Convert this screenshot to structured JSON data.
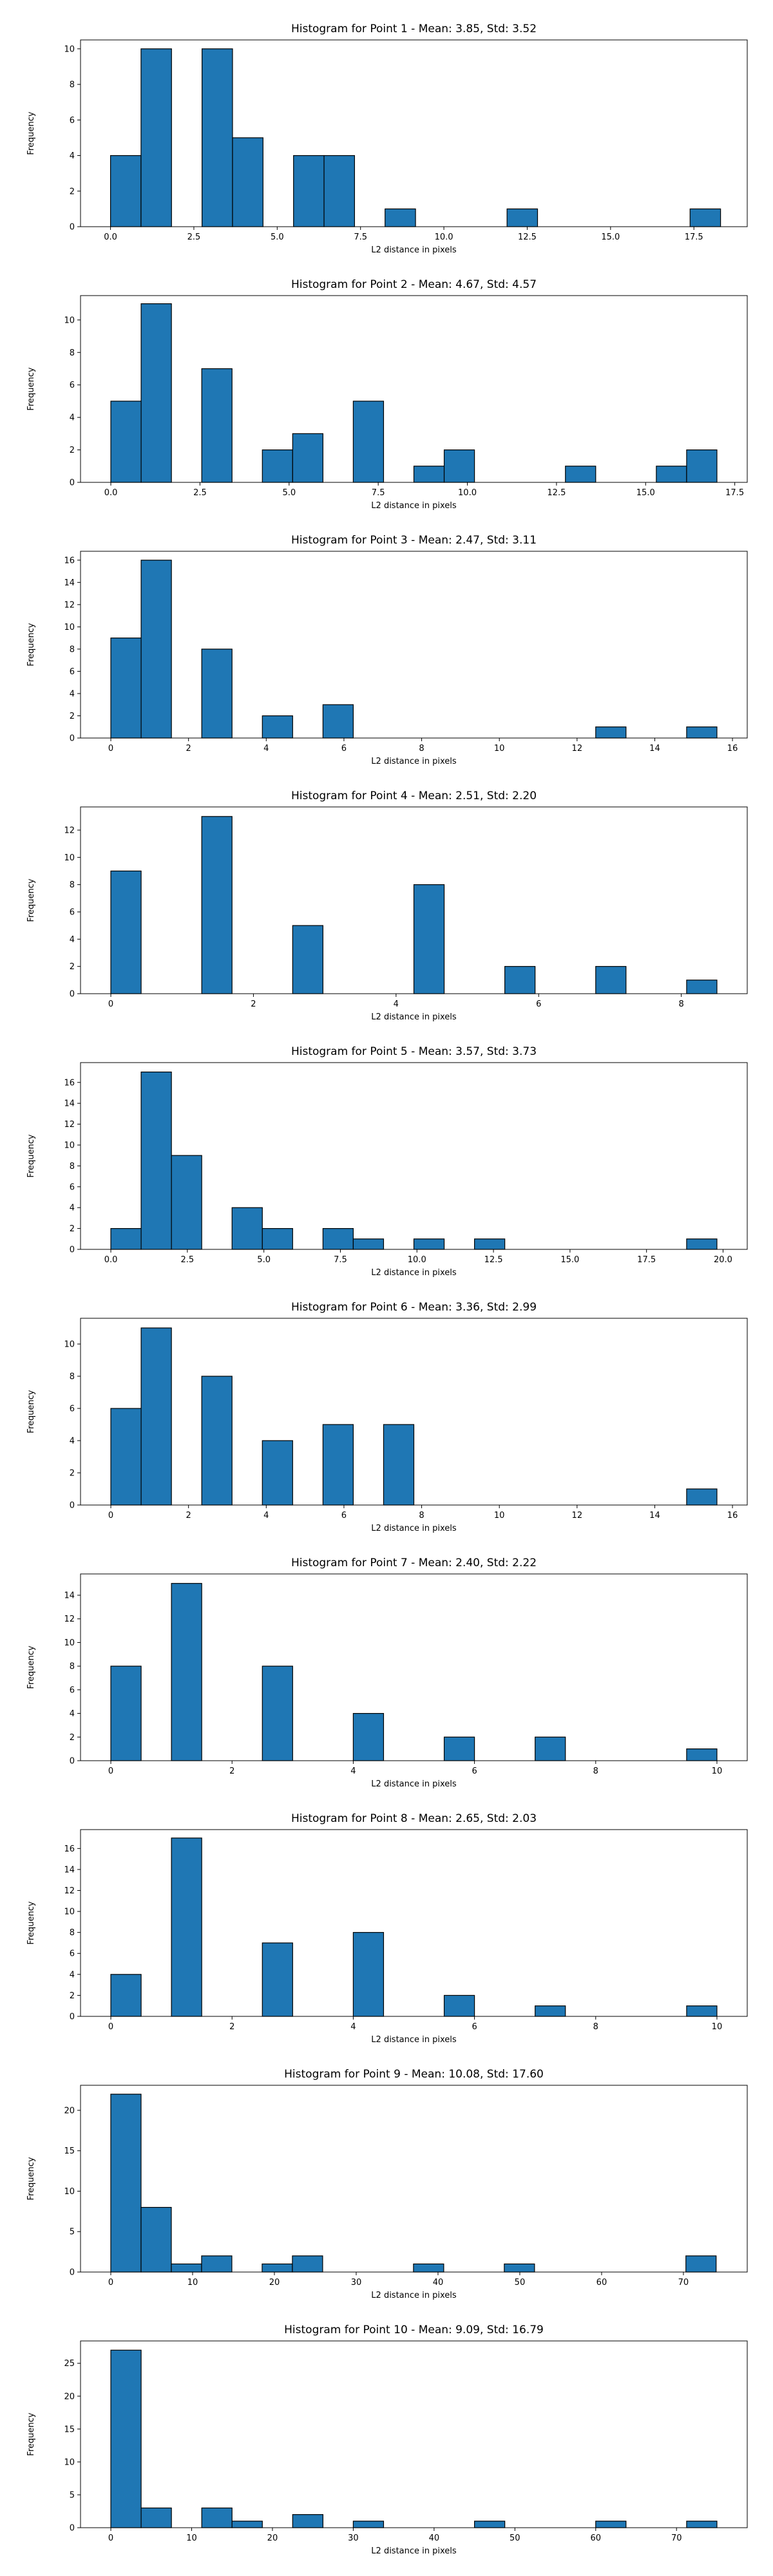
{
  "chart_data": [
    {
      "type": "bar",
      "title": "Histogram for Point 1 - Mean: 3.85, Std: 3.52",
      "xlabel": "L2 distance in pixels",
      "ylabel": "Frequency",
      "xlim": [
        -0.9,
        19.1
      ],
      "ylim": [
        0,
        10.5
      ],
      "xticks": [
        0.0,
        2.5,
        5.0,
        7.5,
        10.0,
        12.5,
        15.0,
        17.5
      ],
      "xtick_labels": [
        "0.0",
        "2.5",
        "5.0",
        "7.5",
        "10.0",
        "12.5",
        "15.0",
        "17.5"
      ],
      "yticks": [
        0,
        2,
        4,
        6,
        8,
        10
      ],
      "ytick_labels": [
        "0",
        "2",
        "4",
        "6",
        "8",
        "10"
      ],
      "bins": [
        [
          0.0,
          0.915
        ],
        [
          0.915,
          1.83
        ],
        [
          2.745,
          3.66
        ],
        [
          3.66,
          4.575
        ],
        [
          5.49,
          6.405
        ],
        [
          6.405,
          7.32
        ],
        [
          8.235,
          9.15
        ],
        [
          11.895,
          12.81
        ],
        [
          17.385,
          18.3
        ]
      ],
      "values": [
        4,
        10,
        10,
        5,
        4,
        4,
        1,
        1,
        1
      ],
      "bar_color": "#1f77b4",
      "grid": false
    },
    {
      "type": "bar",
      "title": "Histogram for Point 2 - Mean: 4.67, Std: 4.57",
      "xlabel": "L2 distance in pixels",
      "ylabel": "Frequency",
      "xlim": [
        -0.85,
        17.85
      ],
      "ylim": [
        0,
        11.5
      ],
      "xticks": [
        0.0,
        2.5,
        5.0,
        7.5,
        10.0,
        12.5,
        15.0,
        17.5
      ],
      "xtick_labels": [
        "0.0",
        "2.5",
        "5.0",
        "7.5",
        "10.0",
        "12.5",
        "15.0",
        "17.5"
      ],
      "yticks": [
        0,
        2,
        4,
        6,
        8,
        10
      ],
      "ytick_labels": [
        "0",
        "2",
        "4",
        "6",
        "8",
        "10"
      ],
      "bins": [
        [
          0.0,
          0.85
        ],
        [
          0.85,
          1.7
        ],
        [
          2.55,
          3.4
        ],
        [
          4.25,
          5.1
        ],
        [
          5.1,
          5.95
        ],
        [
          6.8,
          7.65
        ],
        [
          8.5,
          9.35
        ],
        [
          9.35,
          10.2
        ],
        [
          12.75,
          13.6
        ],
        [
          15.3,
          16.15
        ],
        [
          16.15,
          17.0
        ]
      ],
      "values": [
        5,
        11,
        7,
        2,
        3,
        5,
        1,
        2,
        1,
        1,
        2
      ],
      "bar_color": "#1f77b4",
      "grid": false
    },
    {
      "type": "bar",
      "title": "Histogram for Point 3 - Mean: 2.47, Std: 3.11",
      "xlabel": "L2 distance in pixels",
      "ylabel": "Frequency",
      "xlim": [
        -0.78,
        16.38
      ],
      "ylim": [
        0,
        16.8
      ],
      "xticks": [
        0,
        2,
        4,
        6,
        8,
        10,
        12,
        14,
        16
      ],
      "xtick_labels": [
        "0",
        "2",
        "4",
        "6",
        "8",
        "10",
        "12",
        "14",
        "16"
      ],
      "yticks": [
        0,
        2,
        4,
        6,
        8,
        10,
        12,
        14,
        16
      ],
      "ytick_labels": [
        "0",
        "2",
        "4",
        "6",
        "8",
        "10",
        "12",
        "14",
        "16"
      ],
      "bins": [
        [
          0.0,
          0.78
        ],
        [
          0.78,
          1.56
        ],
        [
          2.34,
          3.12
        ],
        [
          3.9,
          4.68
        ],
        [
          5.46,
          6.24
        ],
        [
          12.48,
          13.26
        ],
        [
          14.82,
          15.6
        ]
      ],
      "values": [
        9,
        16,
        8,
        2,
        3,
        1,
        1
      ],
      "bar_color": "#1f77b4",
      "grid": false
    },
    {
      "type": "bar",
      "title": "Histogram for Point 4 - Mean: 2.51, Std: 2.20",
      "xlabel": "L2 distance in pixels",
      "ylabel": "Frequency",
      "xlim": [
        -0.425,
        8.925
      ],
      "ylim": [
        0,
        13.7
      ],
      "xticks": [
        0,
        2,
        4,
        6,
        8
      ],
      "xtick_labels": [
        "0",
        "2",
        "4",
        "6",
        "8"
      ],
      "yticks": [
        0,
        2,
        4,
        6,
        8,
        10,
        12
      ],
      "ytick_labels": [
        "0",
        "2",
        "4",
        "6",
        "8",
        "10",
        "12"
      ],
      "bins": [
        [
          0.0,
          0.425
        ],
        [
          1.275,
          1.7
        ],
        [
          2.55,
          2.975
        ],
        [
          4.25,
          4.675
        ],
        [
          5.525,
          5.95
        ],
        [
          6.8,
          7.225
        ],
        [
          8.075,
          8.5
        ]
      ],
      "values": [
        9,
        13,
        5,
        8,
        2,
        2,
        1
      ],
      "bar_color": "#1f77b4",
      "grid": false
    },
    {
      "type": "bar",
      "title": "Histogram for Point 5 - Mean: 3.57, Std: 3.73",
      "xlabel": "L2 distance in pixels",
      "ylabel": "Frequency",
      "xlim": [
        -0.99,
        20.79
      ],
      "ylim": [
        0,
        17.9
      ],
      "xticks": [
        0.0,
        2.5,
        5.0,
        7.5,
        10.0,
        12.5,
        15.0,
        17.5,
        20.0
      ],
      "xtick_labels": [
        "0.0",
        "2.5",
        "5.0",
        "7.5",
        "10.0",
        "12.5",
        "15.0",
        "17.5",
        "20.0"
      ],
      "yticks": [
        0,
        2,
        4,
        6,
        8,
        10,
        12,
        14,
        16
      ],
      "ytick_labels": [
        "0",
        "2",
        "4",
        "6",
        "8",
        "10",
        "12",
        "14",
        "16"
      ],
      "bins": [
        [
          0.0,
          0.99
        ],
        [
          0.99,
          1.98
        ],
        [
          1.98,
          2.97
        ],
        [
          3.96,
          4.95
        ],
        [
          4.95,
          5.94
        ],
        [
          6.93,
          7.92
        ],
        [
          7.92,
          8.91
        ],
        [
          9.9,
          10.89
        ],
        [
          11.88,
          12.87
        ],
        [
          18.81,
          19.8
        ]
      ],
      "values": [
        2,
        17,
        9,
        4,
        2,
        2,
        1,
        1,
        1,
        1
      ],
      "bar_color": "#1f77b4",
      "grid": false
    },
    {
      "type": "bar",
      "title": "Histogram for Point 6 - Mean: 3.36, Std: 2.99",
      "xlabel": "L2 distance in pixels",
      "ylabel": "Frequency",
      "xlim": [
        -0.78,
        16.38
      ],
      "ylim": [
        0,
        11.6
      ],
      "xticks": [
        0,
        2,
        4,
        6,
        8,
        10,
        12,
        14,
        16
      ],
      "xtick_labels": [
        "0",
        "2",
        "4",
        "6",
        "8",
        "10",
        "12",
        "14",
        "16"
      ],
      "yticks": [
        0,
        2,
        4,
        6,
        8,
        10
      ],
      "ytick_labels": [
        "0",
        "2",
        "4",
        "6",
        "8",
        "10"
      ],
      "bins": [
        [
          0.0,
          0.78
        ],
        [
          0.78,
          1.56
        ],
        [
          2.34,
          3.12
        ],
        [
          3.9,
          4.68
        ],
        [
          5.46,
          6.24
        ],
        [
          7.02,
          7.8
        ],
        [
          14.82,
          15.6
        ]
      ],
      "values": [
        6,
        11,
        8,
        4,
        5,
        5,
        1
      ],
      "bar_color": "#1f77b4",
      "grid": false
    },
    {
      "type": "bar",
      "title": "Histogram for Point 7 - Mean: 2.40, Std: 2.22",
      "xlabel": "L2 distance in pixels",
      "ylabel": "Frequency",
      "xlim": [
        -0.5,
        10.5
      ],
      "ylim": [
        0,
        15.8
      ],
      "xticks": [
        0,
        2,
        4,
        6,
        8,
        10
      ],
      "xtick_labels": [
        "0",
        "2",
        "4",
        "6",
        "8",
        "10"
      ],
      "yticks": [
        0,
        2,
        4,
        6,
        8,
        10,
        12,
        14
      ],
      "ytick_labels": [
        "0",
        "2",
        "4",
        "6",
        "8",
        "10",
        "12",
        "14"
      ],
      "bins": [
        [
          0.0,
          0.5
        ],
        [
          1.0,
          1.5
        ],
        [
          2.5,
          3.0
        ],
        [
          4.0,
          4.5
        ],
        [
          5.5,
          6.0
        ],
        [
          7.0,
          7.5
        ],
        [
          9.5,
          10.0
        ]
      ],
      "values": [
        8,
        15,
        8,
        4,
        2,
        2,
        1
      ],
      "bar_color": "#1f77b4",
      "grid": false
    },
    {
      "type": "bar",
      "title": "Histogram for Point 8 - Mean: 2.65, Std: 2.03",
      "xlabel": "L2 distance in pixels",
      "ylabel": "Frequency",
      "xlim": [
        -0.5,
        10.5
      ],
      "ylim": [
        0,
        17.8
      ],
      "xticks": [
        0,
        2,
        4,
        6,
        8,
        10
      ],
      "xtick_labels": [
        "0",
        "2",
        "4",
        "6",
        "8",
        "10"
      ],
      "yticks": [
        0,
        2,
        4,
        6,
        8,
        10,
        12,
        14,
        16
      ],
      "ytick_labels": [
        "0",
        "2",
        "4",
        "6",
        "8",
        "10",
        "12",
        "14",
        "16"
      ],
      "bins": [
        [
          0.0,
          0.5
        ],
        [
          1.0,
          1.5
        ],
        [
          2.5,
          3.0
        ],
        [
          4.0,
          4.5
        ],
        [
          5.5,
          6.0
        ],
        [
          7.0,
          7.5
        ],
        [
          9.5,
          10.0
        ]
      ],
      "values": [
        4,
        17,
        7,
        8,
        2,
        1,
        1
      ],
      "bar_color": "#1f77b4",
      "grid": false
    },
    {
      "type": "bar",
      "title": "Histogram for Point 9 - Mean: 10.08, Std: 17.60",
      "xlabel": "L2 distance in pixels",
      "ylabel": "Frequency",
      "xlim": [
        -3.7,
        77.8
      ],
      "ylim": [
        0,
        23.1
      ],
      "xticks": [
        0,
        10,
        20,
        30,
        40,
        50,
        60,
        70
      ],
      "xtick_labels": [
        "0",
        "10",
        "20",
        "30",
        "40",
        "50",
        "60",
        "70"
      ],
      "yticks": [
        0,
        5,
        10,
        15,
        20
      ],
      "ytick_labels": [
        "0",
        "5",
        "10",
        "15",
        "20"
      ],
      "bins": [
        [
          0.0,
          3.7
        ],
        [
          3.7,
          7.4
        ],
        [
          7.4,
          11.1
        ],
        [
          11.1,
          14.8
        ],
        [
          18.5,
          22.2
        ],
        [
          22.2,
          25.9
        ],
        [
          37.0,
          40.7
        ],
        [
          48.1,
          51.8
        ],
        [
          70.3,
          74.0
        ]
      ],
      "values": [
        22,
        8,
        1,
        2,
        1,
        2,
        1,
        1,
        2
      ],
      "bar_color": "#1f77b4",
      "grid": false
    },
    {
      "type": "bar",
      "title": "Histogram for Point 10 - Mean: 9.09, Std: 16.79",
      "xlabel": "L2 distance in pixels",
      "ylabel": "Frequency",
      "xlim": [
        -3.75,
        78.75
      ],
      "ylim": [
        0,
        28.4
      ],
      "xticks": [
        0,
        10,
        20,
        30,
        40,
        50,
        60,
        70
      ],
      "xtick_labels": [
        "0",
        "10",
        "20",
        "30",
        "40",
        "50",
        "60",
        "70"
      ],
      "yticks": [
        0,
        5,
        10,
        15,
        20,
        25
      ],
      "ytick_labels": [
        "0",
        "5",
        "10",
        "15",
        "20",
        "25"
      ],
      "bins": [
        [
          0.0,
          3.75
        ],
        [
          3.75,
          7.5
        ],
        [
          11.25,
          15.0
        ],
        [
          15.0,
          18.75
        ],
        [
          22.5,
          26.25
        ],
        [
          30.0,
          33.75
        ],
        [
          45.0,
          48.75
        ],
        [
          60.0,
          63.75
        ],
        [
          71.25,
          75.0
        ]
      ],
      "values": [
        27,
        3,
        3,
        1,
        2,
        1,
        1,
        1,
        1
      ],
      "bar_color": "#1f77b4",
      "grid": false
    }
  ]
}
